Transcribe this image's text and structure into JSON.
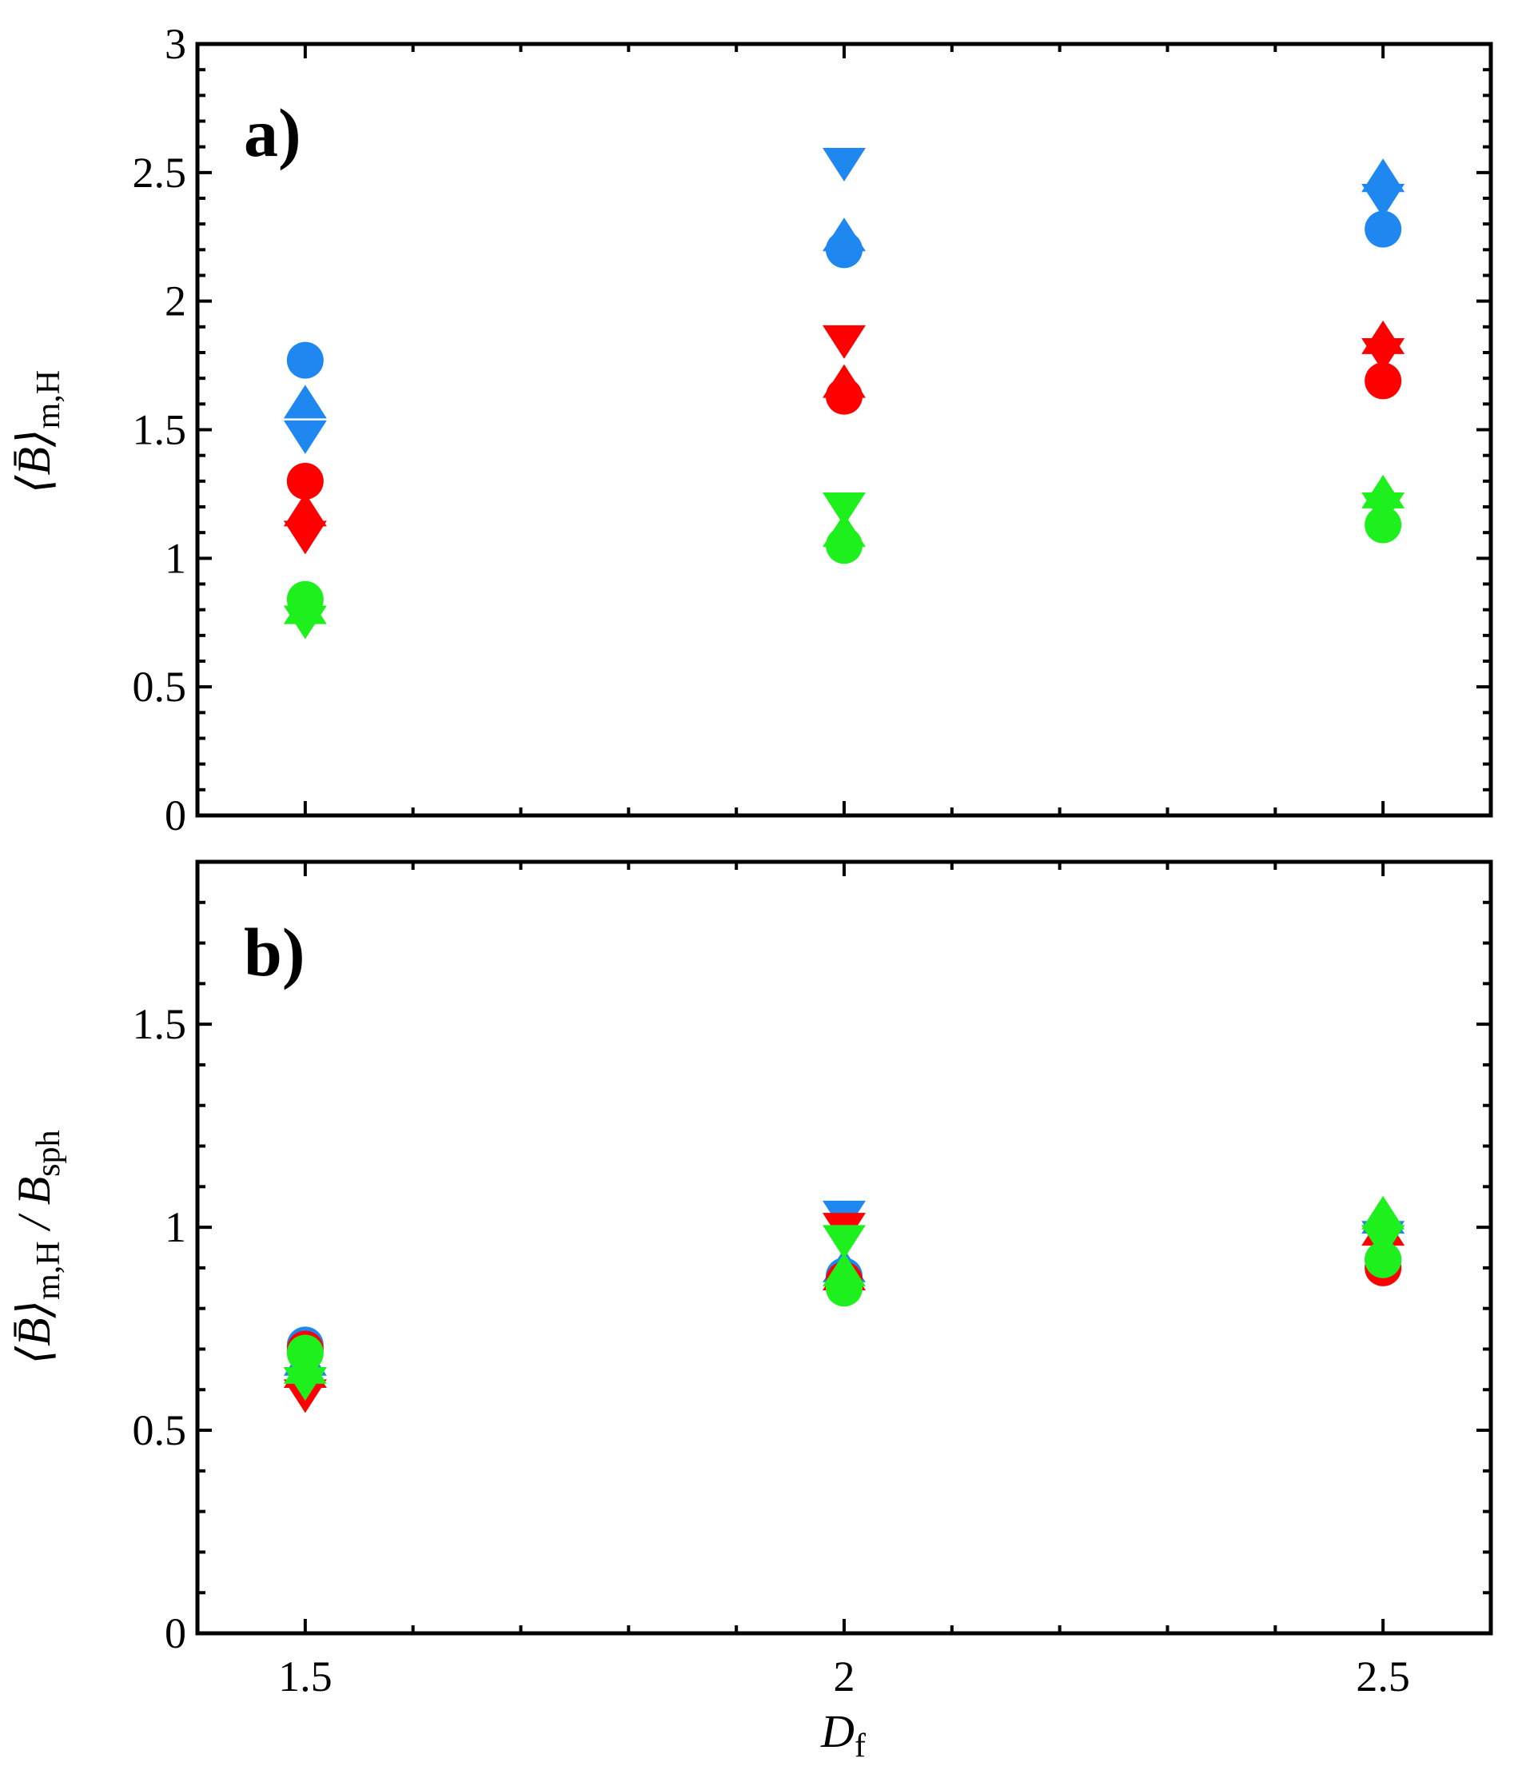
{
  "chart_data": [
    {
      "panel": "a)",
      "type": "scatter",
      "xlabel": {
        "main": "D",
        "sub": "f"
      },
      "ylabel": {
        "main": "⟨B̄⟩",
        "sub": "m,H",
        "extra_main": "",
        "extra_sub": ""
      },
      "xlim": [
        1.4,
        2.6
      ],
      "ylim": [
        0,
        3
      ],
      "xticks": [
        1.5,
        2,
        2.5
      ],
      "xtick_labels": [
        "1.5",
        "2",
        "2.5"
      ],
      "yticks": [
        0,
        0.5,
        1,
        1.5,
        2,
        2.5,
        3
      ],
      "ytick_labels": [
        "0",
        "0.5",
        "1",
        "1.5",
        "2",
        "2.5",
        "3"
      ],
      "series": [
        {
          "color": "#1e88f0",
          "marker": "circle",
          "x": [
            1.5,
            2,
            2.5
          ],
          "y": [
            1.77,
            2.2,
            2.28
          ]
        },
        {
          "color": "#1e88f0",
          "marker": "triangle-up",
          "x": [
            1.5,
            2,
            2.5
          ],
          "y": [
            1.6,
            2.25,
            2.48
          ]
        },
        {
          "color": "#1e88f0",
          "marker": "triangle-down",
          "x": [
            1.5,
            2,
            2.5
          ],
          "y": [
            1.48,
            2.54,
            2.4
          ]
        },
        {
          "color": "#ff0000",
          "marker": "circle",
          "x": [
            1.5,
            2,
            2.5
          ],
          "y": [
            1.3,
            1.63,
            1.69
          ]
        },
        {
          "color": "#ff0000",
          "marker": "triangle-up",
          "x": [
            1.5,
            2,
            2.5
          ],
          "y": [
            1.18,
            1.68,
            1.85
          ]
        },
        {
          "color": "#ff0000",
          "marker": "triangle-down",
          "x": [
            1.5,
            2,
            2.5
          ],
          "y": [
            1.09,
            1.85,
            1.8
          ]
        },
        {
          "color": "#1ef01e",
          "marker": "circle",
          "x": [
            1.5,
            2,
            2.5
          ],
          "y": [
            0.84,
            1.05,
            1.13
          ]
        },
        {
          "color": "#1ef01e",
          "marker": "triangle-up",
          "x": [
            1.5,
            2,
            2.5
          ],
          "y": [
            0.8,
            1.1,
            1.25
          ]
        },
        {
          "color": "#1ef01e",
          "marker": "triangle-down",
          "x": [
            1.5,
            2,
            2.5
          ],
          "y": [
            0.76,
            1.2,
            1.2
          ]
        }
      ]
    },
    {
      "panel": "b)",
      "type": "scatter",
      "xlabel": {
        "main": "D",
        "sub": "f"
      },
      "ylabel": {
        "main": "⟨B̄⟩",
        "sub": "m,H",
        "extra_main": " / B",
        "extra_sub": "sph"
      },
      "xlim": [
        1.4,
        2.6
      ],
      "ylim": [
        0,
        1.9
      ],
      "xticks": [
        1.5,
        2,
        2.5
      ],
      "xtick_labels": [
        "1.5",
        "2",
        "2.5"
      ],
      "yticks": [
        0,
        0.5,
        1,
        1.5
      ],
      "ytick_labels": [
        "0",
        "0.5",
        "1",
        "1.5"
      ],
      "series": [
        {
          "color": "#1e88f0",
          "marker": "circle",
          "x": [
            1.5,
            2,
            2.5
          ],
          "y": [
            0.71,
            0.88,
            0.92
          ]
        },
        {
          "color": "#1e88f0",
          "marker": "triangle-up",
          "x": [
            1.5,
            2,
            2.5
          ],
          "y": [
            0.67,
            0.9,
            1.02
          ]
        },
        {
          "color": "#1e88f0",
          "marker": "triangle-down",
          "x": [
            1.5,
            2,
            2.5
          ],
          "y": [
            0.62,
            1.03,
            0.98
          ]
        },
        {
          "color": "#ff0000",
          "marker": "circle",
          "x": [
            1.5,
            2,
            2.5
          ],
          "y": [
            0.7,
            0.87,
            0.9
          ]
        },
        {
          "color": "#ff0000",
          "marker": "triangle-up",
          "x": [
            1.5,
            2,
            2.5
          ],
          "y": [
            0.64,
            0.88,
            0.99
          ]
        },
        {
          "color": "#ff0000",
          "marker": "triangle-down",
          "x": [
            1.5,
            2,
            2.5
          ],
          "y": [
            0.59,
            1.0,
            0.97
          ]
        },
        {
          "color": "#1ef01e",
          "marker": "circle",
          "x": [
            1.5,
            2,
            2.5
          ],
          "y": [
            0.69,
            0.85,
            0.92
          ]
        },
        {
          "color": "#1ef01e",
          "marker": "triangle-up",
          "x": [
            1.5,
            2,
            2.5
          ],
          "y": [
            0.65,
            0.89,
            1.03
          ]
        },
        {
          "color": "#1ef01e",
          "marker": "triangle-down",
          "x": [
            1.5,
            2,
            2.5
          ],
          "y": [
            0.62,
            0.97,
            0.97
          ]
        }
      ]
    }
  ]
}
